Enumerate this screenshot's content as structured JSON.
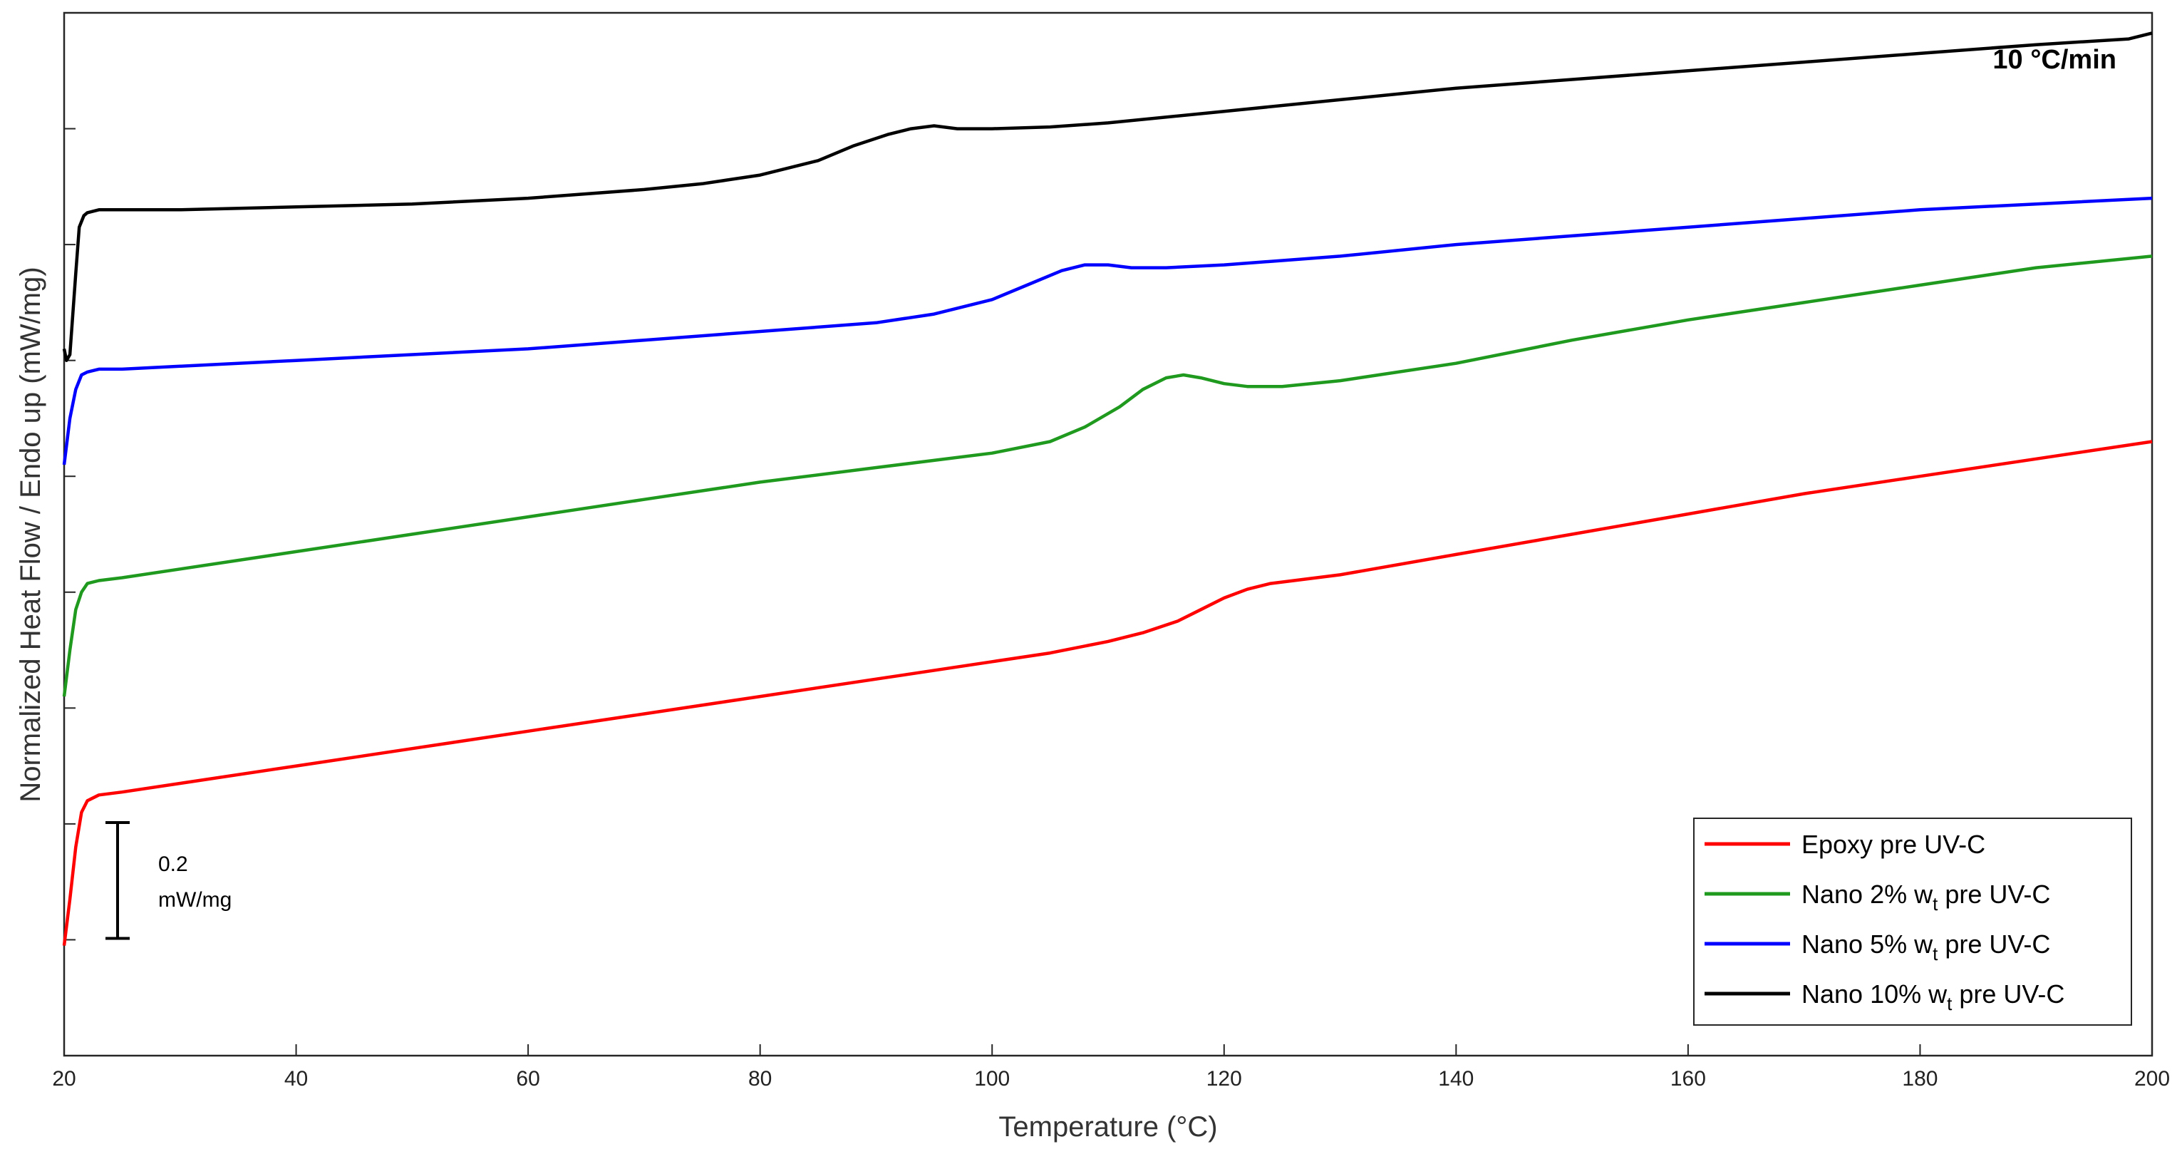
{
  "chart_data": {
    "type": "line",
    "title": "",
    "xlabel": "Temperature (°C)",
    "ylabel": "Normalized Heat Flow / Endo up (mW/mg)",
    "xlim": [
      20,
      200
    ],
    "xticks": [
      20,
      40,
      60,
      80,
      100,
      120,
      140,
      160,
      180,
      200
    ],
    "ylim": [
      0,
      1.8
    ],
    "yticks_count": 9,
    "y_tick_labels_shown": false,
    "grid": false,
    "legend_position": "bottom-right",
    "annotation": "10 °C/min",
    "scale_bar": {
      "value_text": "0.2",
      "unit_text": "mW/mg",
      "value": 0.2
    },
    "series": [
      {
        "name": "Epoxy pre UV-C",
        "legend_main": "Epoxy pre UV-C",
        "legend_sub": "",
        "legend_tail": "",
        "color": "#ff0000",
        "x": [
          20,
          20.5,
          21,
          21.5,
          22,
          23,
          25,
          30,
          40,
          50,
          60,
          70,
          80,
          90,
          100,
          105,
          110,
          113,
          116,
          118,
          120,
          122,
          124,
          130,
          140,
          150,
          160,
          170,
          180,
          190,
          200
        ],
        "y": [
          0.19,
          0.27,
          0.36,
          0.42,
          0.44,
          0.45,
          0.455,
          0.47,
          0.5,
          0.53,
          0.56,
          0.59,
          0.62,
          0.65,
          0.68,
          0.695,
          0.715,
          0.73,
          0.75,
          0.77,
          0.79,
          0.805,
          0.815,
          0.83,
          0.865,
          0.9,
          0.935,
          0.97,
          1.0,
          1.03,
          1.06
        ]
      },
      {
        "name": "Nano 2% wt pre UV-C",
        "legend_main": "Nano 2% w",
        "legend_sub": "t",
        "legend_tail": " pre UV-C",
        "color": "#1f9a1f",
        "x": [
          20,
          20.5,
          21,
          21.5,
          22,
          23,
          25,
          30,
          40,
          50,
          60,
          70,
          80,
          90,
          100,
          105,
          108,
          111,
          113,
          115,
          116.5,
          118,
          120,
          122,
          125,
          130,
          140,
          150,
          160,
          170,
          180,
          190,
          200
        ],
        "y": [
          0.62,
          0.7,
          0.77,
          0.8,
          0.815,
          0.82,
          0.825,
          0.84,
          0.87,
          0.9,
          0.93,
          0.96,
          0.99,
          1.015,
          1.04,
          1.06,
          1.085,
          1.12,
          1.15,
          1.17,
          1.175,
          1.17,
          1.16,
          1.155,
          1.155,
          1.165,
          1.195,
          1.235,
          1.27,
          1.3,
          1.33,
          1.36,
          1.38
        ]
      },
      {
        "name": "Nano 5% wt pre UV-C",
        "legend_main": "Nano 5% w",
        "legend_sub": "t",
        "legend_tail": " pre UV-C",
        "color": "#0000ff",
        "x": [
          20,
          20.5,
          21,
          21.5,
          22,
          23,
          25,
          30,
          40,
          50,
          60,
          70,
          80,
          90,
          95,
          100,
          103,
          106,
          108,
          110,
          112,
          115,
          120,
          130,
          140,
          150,
          160,
          170,
          180,
          190,
          200
        ],
        "y": [
          1.02,
          1.1,
          1.15,
          1.175,
          1.18,
          1.185,
          1.185,
          1.19,
          1.2,
          1.21,
          1.22,
          1.235,
          1.25,
          1.265,
          1.28,
          1.305,
          1.33,
          1.355,
          1.365,
          1.365,
          1.36,
          1.36,
          1.365,
          1.38,
          1.4,
          1.415,
          1.43,
          1.445,
          1.46,
          1.47,
          1.48
        ]
      },
      {
        "name": "Nano 10% wt pre UV-C",
        "legend_main": "Nano 10% w",
        "legend_sub": "t",
        "legend_tail": " pre UV-C",
        "color": "#000000",
        "x": [
          20,
          20.2,
          20.5,
          21,
          21.3,
          21.7,
          22,
          23,
          25,
          30,
          40,
          50,
          60,
          70,
          75,
          80,
          85,
          88,
          91,
          93,
          95,
          97,
          100,
          105,
          110,
          120,
          130,
          140,
          150,
          160,
          170,
          180,
          190,
          198,
          200
        ],
        "y": [
          1.22,
          1.2,
          1.21,
          1.35,
          1.43,
          1.45,
          1.455,
          1.46,
          1.46,
          1.46,
          1.465,
          1.47,
          1.48,
          1.495,
          1.505,
          1.52,
          1.545,
          1.57,
          1.59,
          1.6,
          1.605,
          1.6,
          1.6,
          1.603,
          1.61,
          1.63,
          1.65,
          1.67,
          1.685,
          1.7,
          1.715,
          1.73,
          1.745,
          1.755,
          1.765
        ]
      }
    ]
  }
}
